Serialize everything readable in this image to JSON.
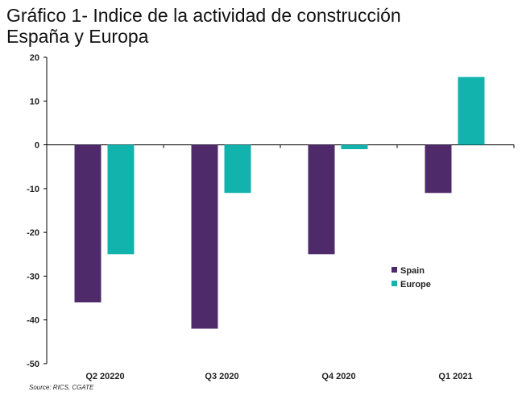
{
  "title_line1": "Gráfico 1- Indice de la actividad de construcción",
  "title_line2": "España y Europa",
  "source": "Source: RICS, CGATE",
  "colors": {
    "spain": "#4e2a6a",
    "europe": "#12b3ad",
    "axis": "#000000"
  },
  "chart_data": {
    "type": "bar",
    "title": "Gráfico 1- Indice de la actividad de construcción España y Europa",
    "categories": [
      "Q2 20220",
      "Q3 2020",
      "Q4 2020",
      "Q1 2021"
    ],
    "series": [
      {
        "name": "Spain",
        "values": [
          -36,
          -42,
          -25,
          -11
        ]
      },
      {
        "name": "Europe",
        "values": [
          -25,
          -11,
          -1,
          15.5
        ]
      }
    ],
    "ylim": [
      -50,
      20
    ],
    "yticks": [
      20,
      10,
      0,
      -10,
      -20,
      -30,
      -40,
      -50
    ],
    "xlabel": "",
    "ylabel": "",
    "grid": false,
    "legend": "right"
  }
}
